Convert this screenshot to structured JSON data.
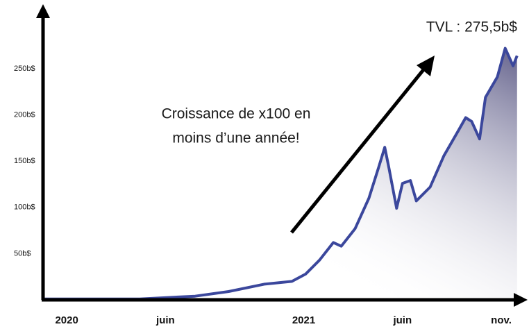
{
  "chart_data": {
    "type": "area",
    "annotations": [
      "TVL : 275,5b$",
      "Croissance de x100 en",
      "moins d’une année!"
    ],
    "x": [
      -1.2,
      3.7,
      6.5,
      8.2,
      10,
      11.4,
      12.1,
      12.8,
      13.5,
      13.9,
      14.6,
      15.3,
      15.8,
      16.1,
      16.3,
      16.7,
      17.0,
      17.4,
      17.7,
      18.4,
      19.1,
      19.8,
      20.2,
      20.5,
      20.9,
      21.2,
      21.8,
      22.2,
      22.6,
      22.8
    ],
    "values": [
      1,
      1,
      4,
      9,
      17,
      20,
      28,
      43,
      62,
      58,
      77,
      110,
      144,
      165,
      144,
      99,
      126,
      129,
      107,
      122,
      156,
      182,
      197,
      193,
      174,
      219,
      241,
      272,
      253,
      264
    ],
    "color": "#3b479c",
    "xlim": [
      -1.2,
      23
    ],
    "xticks": [
      {
        "value": 0,
        "label": "2020"
      },
      {
        "value": 5,
        "label": "juin"
      },
      {
        "value": 12,
        "label": "2021"
      },
      {
        "value": 17,
        "label": "juin"
      },
      {
        "value": 22,
        "label": "nov."
      }
    ],
    "ylim": [
      0,
      313
    ],
    "yticks": [
      {
        "value": 50,
        "label": "50b$"
      },
      {
        "value": 100,
        "label": "100b$"
      },
      {
        "value": 150,
        "label": "150b$"
      },
      {
        "value": 200,
        "label": "200b$"
      },
      {
        "value": 250,
        "label": "250b$"
      }
    ],
    "grid": false
  }
}
